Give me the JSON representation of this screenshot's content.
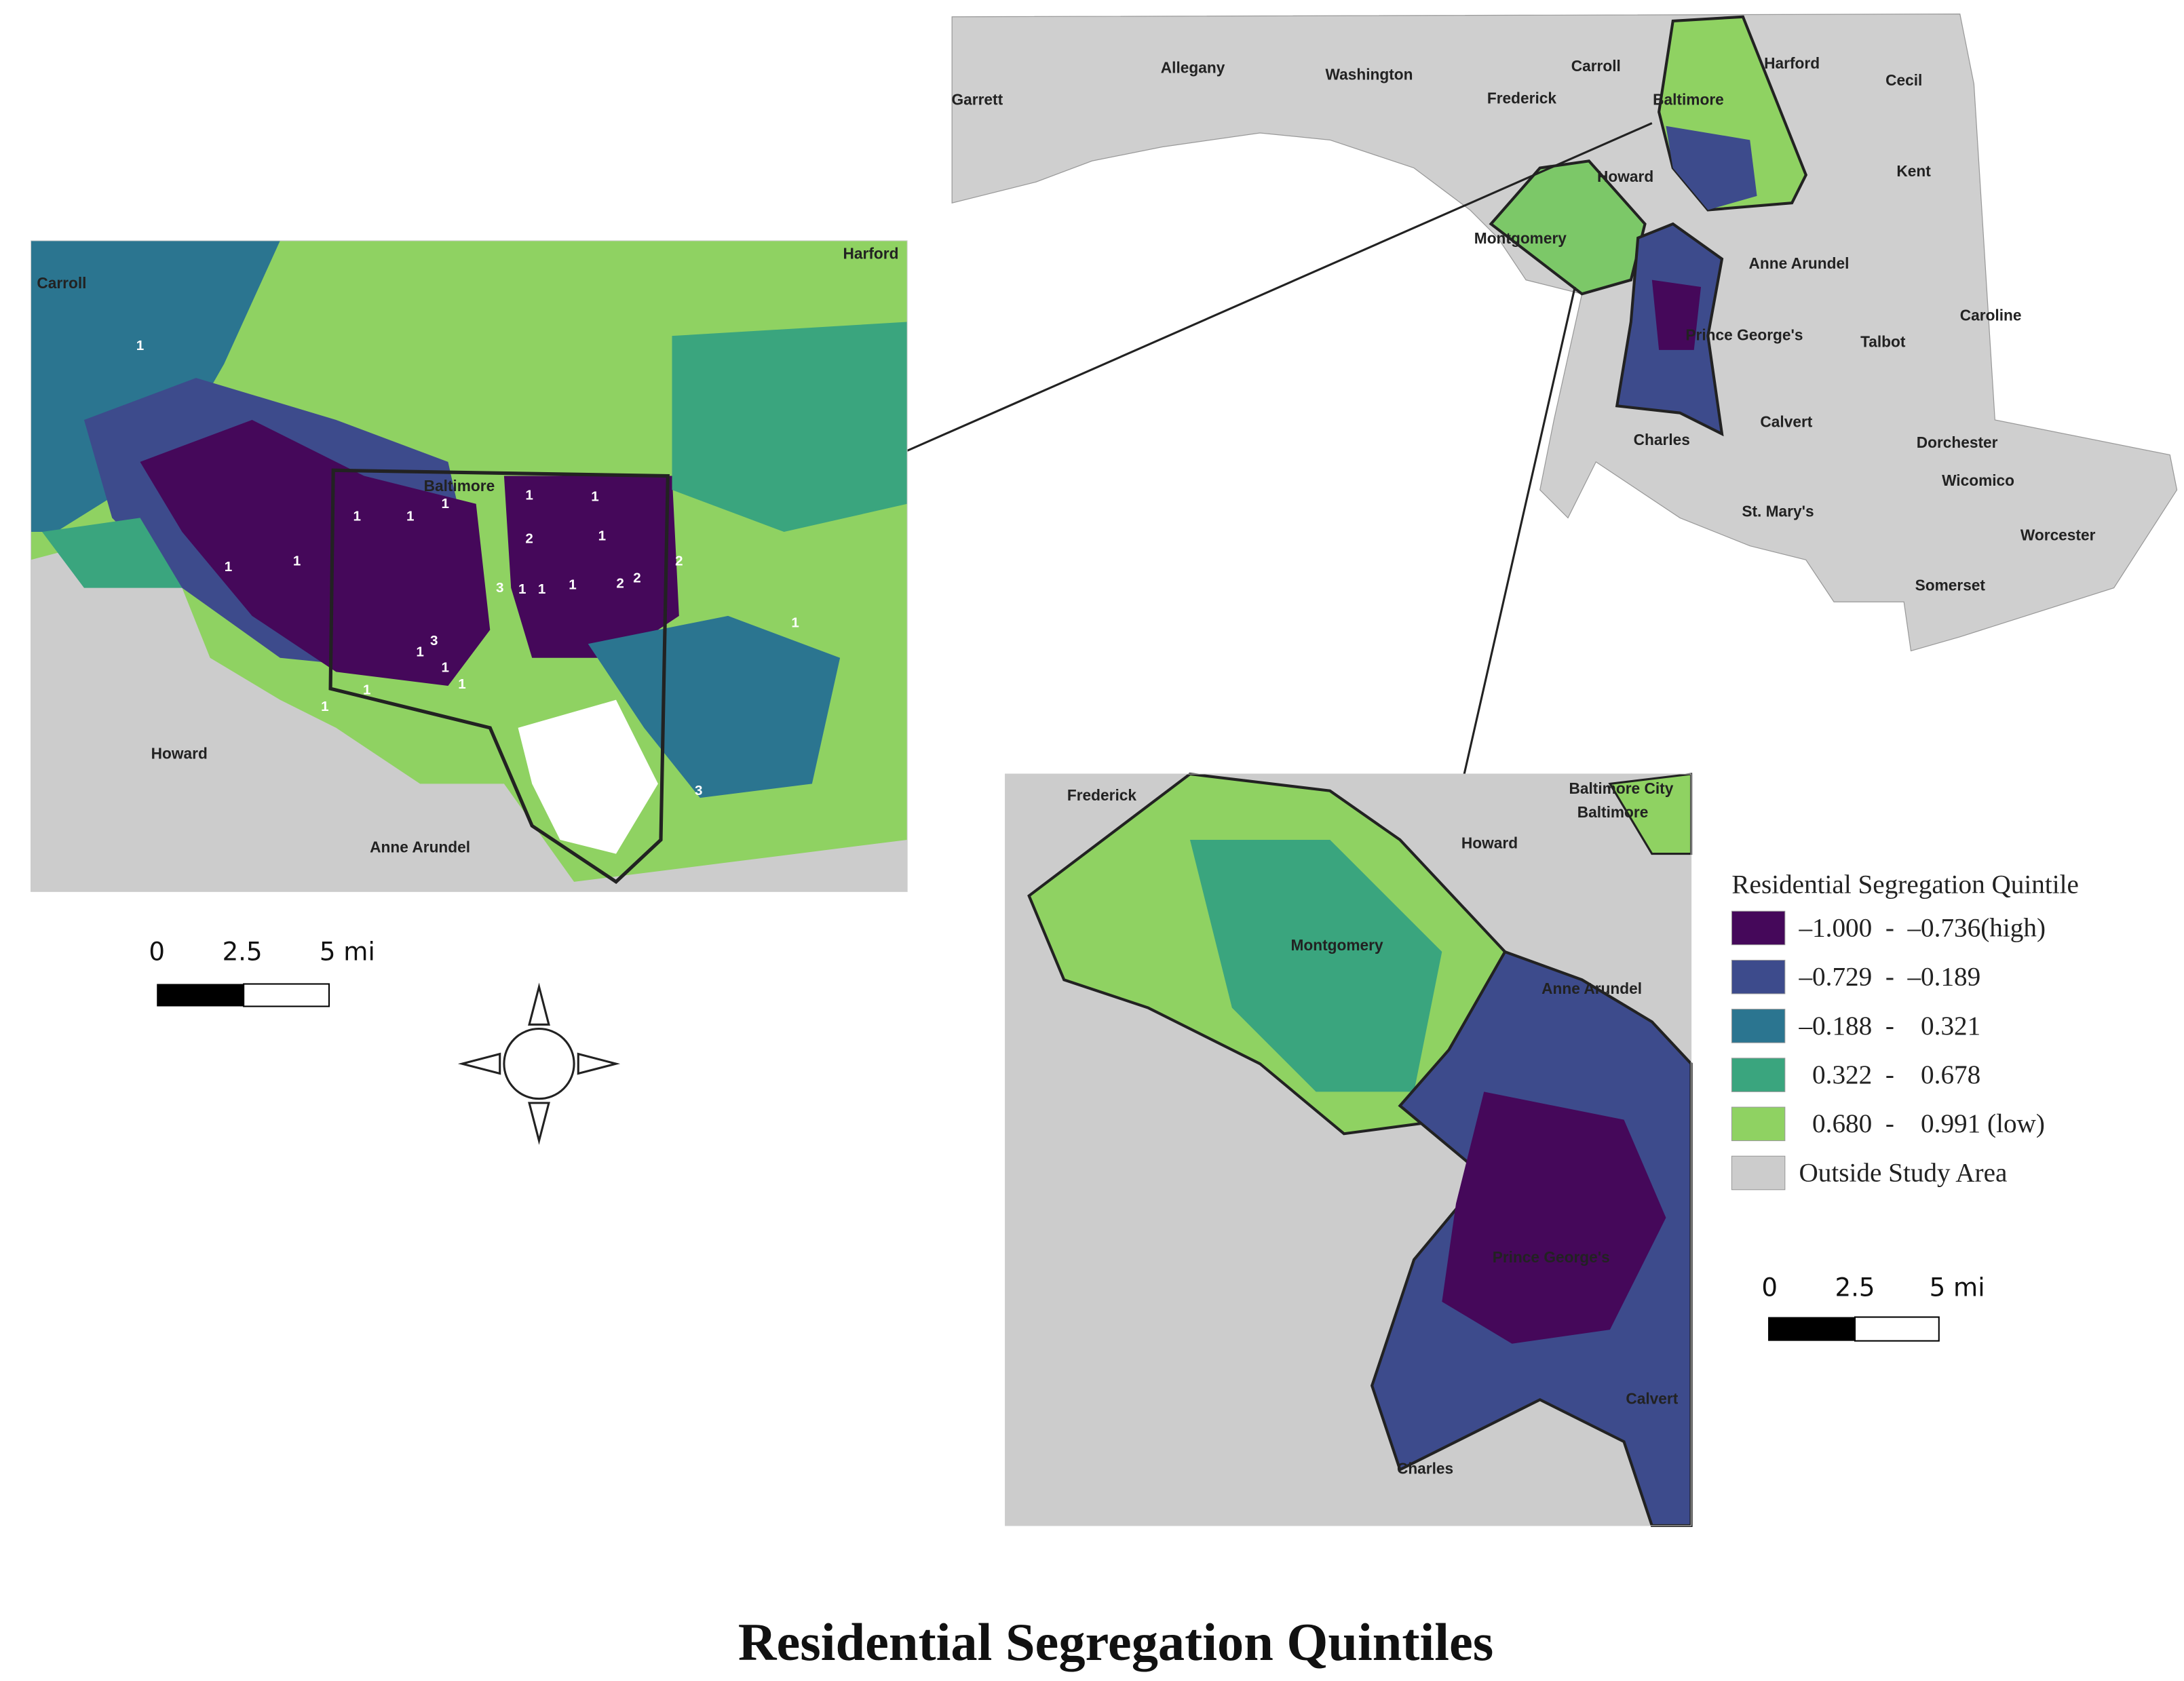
{
  "title": "Residential Segregation Quintiles",
  "state_map": {
    "labels": [
      "Garrett",
      "Allegany",
      "Washington",
      "Carroll",
      "Frederick",
      "Baltimore",
      "Harford",
      "Cecil",
      "Howard",
      "Kent",
      "Montgomery",
      "Anne Arundel",
      "Caroline",
      "Prince George's",
      "Talbot",
      "Calvert",
      "Charles",
      "Dorchester",
      "Wicomico",
      "St. Mary's",
      "Worcester",
      "Somerset"
    ]
  },
  "baltimore_inset": {
    "labels": [
      "Carroll",
      "Harford",
      "Baltimore",
      "Howard",
      "Anne Arundel"
    ],
    "markers": [
      "1",
      "1",
      "1",
      "1",
      "1",
      "2",
      "1",
      "1",
      "2",
      "2",
      "2",
      "1",
      "3",
      "1",
      "1",
      "1",
      "3",
      "1",
      "1",
      "1",
      "1",
      "1",
      "3",
      "1",
      "1"
    ],
    "scale_bar": [
      "0",
      "2.5",
      "5 mi"
    ]
  },
  "dc_inset": {
    "labels": [
      "Frederick",
      "Howard",
      "Baltimore City",
      "Baltimore",
      "Montgomery",
      "Anne Arundel",
      "Prince George's",
      "Calvert",
      "Charles"
    ],
    "scale_bar": [
      "0",
      "2.5",
      "5 mi"
    ]
  },
  "legend": {
    "title": "Residential Segregation Quintile",
    "items": [
      {
        "label": "–1.000  -  –0.736(high)",
        "color": "#45085a"
      },
      {
        "label": "–0.729  -  –0.189",
        "color": "#3d4b8c"
      },
      {
        "label": "–0.188  -    0.321",
        "color": "#2b7590"
      },
      {
        "label": "  0.322  -    0.678",
        "color": "#3aa57e"
      },
      {
        "label": "  0.680  -    0.991 (low)",
        "color": "#8fd262"
      },
      {
        "label": "Outside Study Area",
        "color": "#cccccc"
      }
    ]
  }
}
